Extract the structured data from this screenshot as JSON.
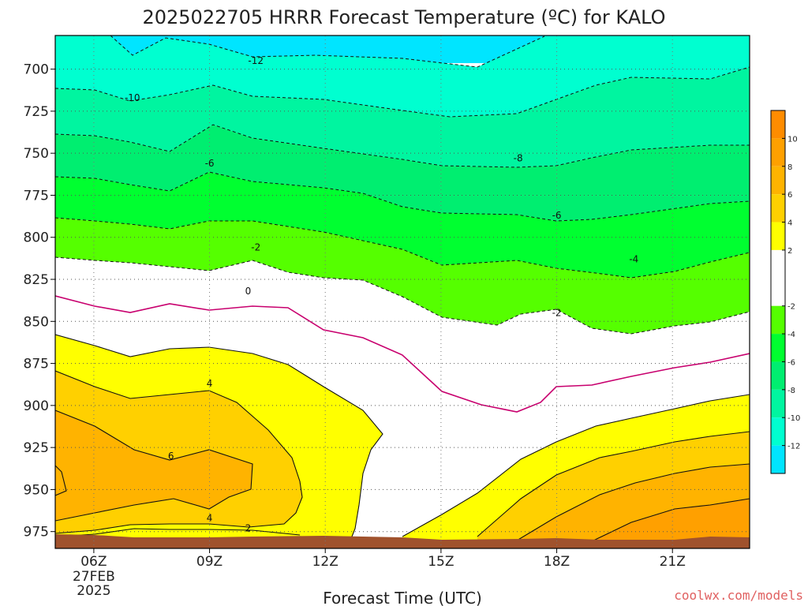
{
  "chart_data": {
    "type": "heatmap",
    "title": "2025022705 HRRR Forecast Temperature (ºC) for KALO",
    "xlabel": "Forecast Time (UTC)",
    "ylabel": "",
    "x_range_hours_utc": [
      5,
      23
    ],
    "y_range_hpa": [
      680,
      985
    ],
    "y_scale": "pressure, increasing downward",
    "x_ticks": [
      {
        "hour": 6,
        "label": "06Z",
        "sub": [
          "27FEB",
          "2025"
        ]
      },
      {
        "hour": 9,
        "label": "09Z"
      },
      {
        "hour": 12,
        "label": "12Z"
      },
      {
        "hour": 15,
        "label": "15Z"
      },
      {
        "hour": 18,
        "label": "18Z"
      },
      {
        "hour": 21,
        "label": "21Z"
      }
    ],
    "y_ticks": [
      "700",
      "725",
      "750",
      "775",
      "800",
      "825",
      "850",
      "875",
      "900",
      "925",
      "950",
      "975"
    ],
    "grid": true,
    "colorbar": {
      "placement": "right",
      "ticks": [
        "10",
        "8",
        "6",
        "4",
        "2",
        "-2",
        "-4",
        "-6",
        "-8",
        "-10",
        "-12"
      ],
      "bands": [
        {
          "range": [
            10,
            12
          ],
          "color": "#ff8c00"
        },
        {
          "range": [
            8,
            10
          ],
          "color": "#ffa000"
        },
        {
          "range": [
            6,
            8
          ],
          "color": "#ffb300"
        },
        {
          "range": [
            4,
            6
          ],
          "color": "#ffd000"
        },
        {
          "range": [
            2,
            4
          ],
          "color": "#ffff00"
        },
        {
          "range": [
            -2,
            2
          ],
          "color": "#ffffff"
        },
        {
          "range": [
            -4,
            -2
          ],
          "color": "#55ff00"
        },
        {
          "range": [
            -6,
            -4
          ],
          "color": "#00ff30"
        },
        {
          "range": [
            -8,
            -6
          ],
          "color": "#00ee70"
        },
        {
          "range": [
            -10,
            -8
          ],
          "color": "#00f5a0"
        },
        {
          "range": [
            -12,
            -10
          ],
          "color": "#00ffd0"
        },
        {
          "range": [
            -14,
            -12
          ],
          "color": "#00e5ff"
        }
      ]
    },
    "ground_color": "#a0522d",
    "isotherm_0C_color": "#c8006e",
    "contour_labels": [
      {
        "text": "-12",
        "hour": 10.2,
        "hpa": 695
      },
      {
        "text": "-10",
        "hour": 7.0,
        "hpa": 717
      },
      {
        "text": "-8",
        "hour": 17.0,
        "hpa": 753
      },
      {
        "text": "-6",
        "hour": 9.0,
        "hpa": 756
      },
      {
        "text": "-6",
        "hour": 18.0,
        "hpa": 787
      },
      {
        "text": "-4",
        "hour": 20.0,
        "hpa": 813
      },
      {
        "text": "-2",
        "hour": 10.2,
        "hpa": 806
      },
      {
        "text": "-2",
        "hour": 18.0,
        "hpa": 845
      },
      {
        "text": "0",
        "hour": 10.0,
        "hpa": 832
      },
      {
        "text": "4",
        "hour": 9.0,
        "hpa": 887
      },
      {
        "text": "6",
        "hour": 8.0,
        "hpa": 930
      },
      {
        "text": "4",
        "hour": 9.0,
        "hpa": 967
      },
      {
        "text": "2",
        "hour": 10.0,
        "hpa": 973
      }
    ]
  },
  "watermark": "coolwx.com/models"
}
